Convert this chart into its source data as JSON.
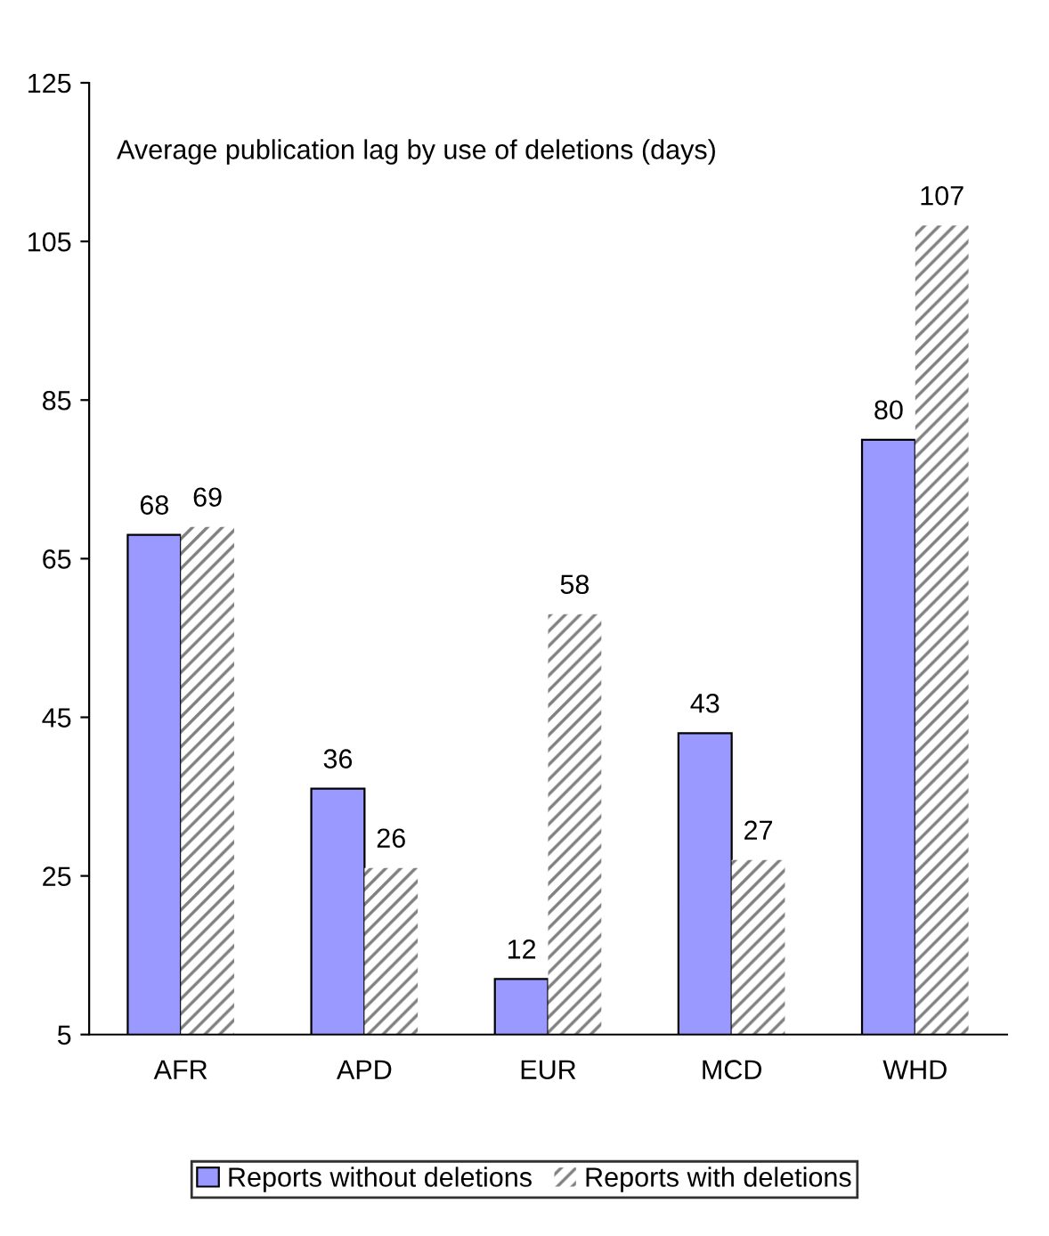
{
  "chart_data": {
    "type": "bar",
    "title": "Average publication lag by use of deletions (days)",
    "categories": [
      "AFR",
      "APD",
      "EUR",
      "MCD",
      "WHD"
    ],
    "series": [
      {
        "name": "Reports without deletions",
        "color": "#9999ff",
        "values": [
          68,
          36,
          12,
          43,
          80
        ]
      },
      {
        "name": "Reports with deletions",
        "color": "#808080",
        "values": [
          69,
          26,
          58,
          27,
          107
        ]
      }
    ],
    "ylim": [
      5,
      125
    ],
    "yticks": [
      5,
      25,
      45,
      65,
      85,
      105,
      125
    ],
    "grid": false,
    "legend": "bottom",
    "data_labels": true
  }
}
